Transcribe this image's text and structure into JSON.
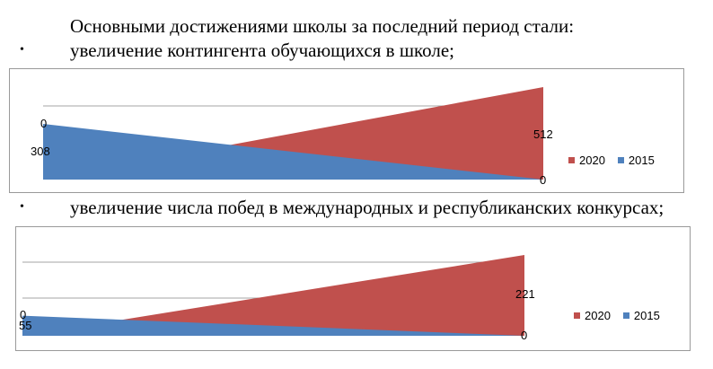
{
  "document": {
    "intro": "Основными достижениями школы за последний период стали:",
    "bullet_symbol": "•",
    "items": [
      "увеличение контингента обучающихся в школе;",
      "увеличение числа побед в международных и республиканских конкурсах;"
    ]
  },
  "colors": {
    "series_2020": "#c0504d",
    "series_2015": "#4f81bd",
    "grid": "#a6a6a6",
    "border": "#9a9a9a"
  },
  "chart_data": [
    {
      "type": "area",
      "title": "",
      "x": [
        "",
        ""
      ],
      "series": [
        {
          "name": "2020",
          "values": [
            0,
            512
          ]
        },
        {
          "name": "2015",
          "values": [
            308,
            0
          ]
        }
      ],
      "ylim": [
        0,
        512
      ],
      "grid": true,
      "legend": "right"
    },
    {
      "type": "area",
      "title": "",
      "x": [
        "",
        ""
      ],
      "series": [
        {
          "name": "2020",
          "values": [
            0,
            221
          ]
        },
        {
          "name": "2015",
          "values": [
            55,
            0
          ]
        }
      ],
      "ylim": [
        0,
        221
      ],
      "grid": true,
      "legend": "right"
    }
  ]
}
